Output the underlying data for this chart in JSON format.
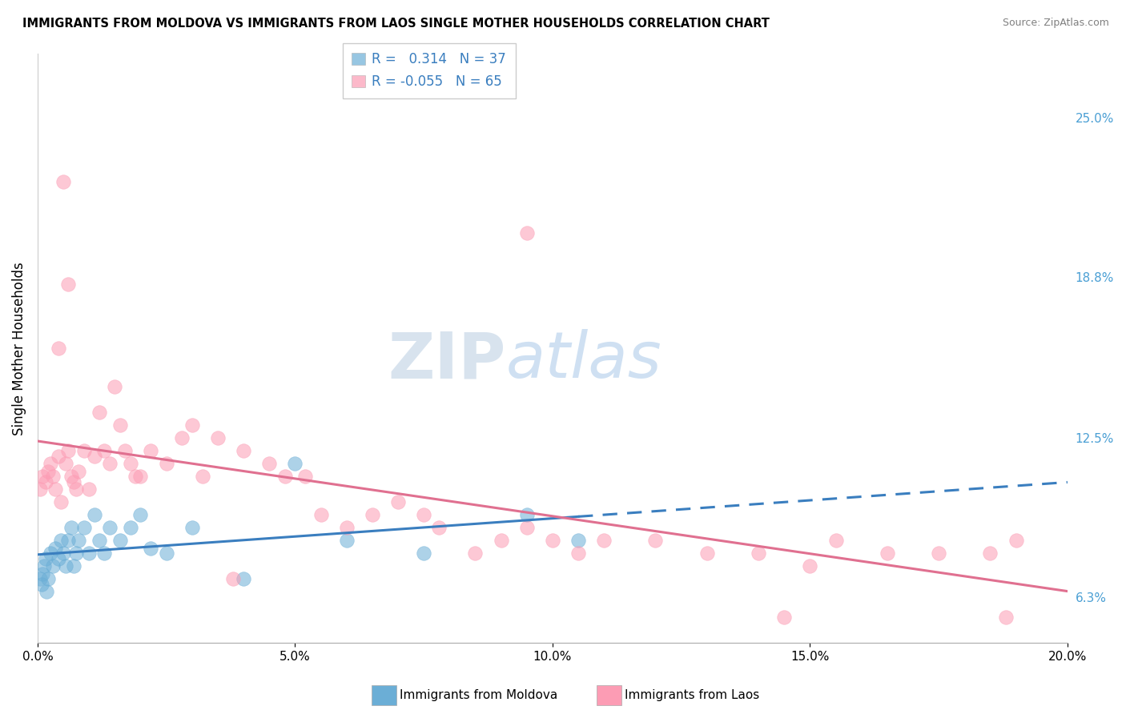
{
  "title": "IMMIGRANTS FROM MOLDOVA VS IMMIGRANTS FROM LAOS SINGLE MOTHER HOUSEHOLDS CORRELATION CHART",
  "source": "Source: ZipAtlas.com",
  "ylabel": "Single Mother Households",
  "xlabel_vals": [
    0.0,
    5.0,
    10.0,
    15.0,
    20.0
  ],
  "ylabel_vals": [
    6.3,
    12.5,
    18.8,
    25.0
  ],
  "xlim": [
    0.0,
    20.0
  ],
  "ylim": [
    4.5,
    27.5
  ],
  "legend1_label": "Immigrants from Moldova",
  "legend2_label": "Immigrants from Laos",
  "r1": "0.314",
  "n1": "37",
  "r2": "-0.055",
  "n2": "65",
  "moldova_color": "#6baed6",
  "laos_color": "#fc9cb4",
  "moldova_line_color": "#3a7ebf",
  "laos_line_color": "#e07090",
  "watermark_zip": "ZIP",
  "watermark_atlas": "atlas",
  "grid_color": "#d0d0d0",
  "moldova_x": [
    0.05,
    0.08,
    0.1,
    0.12,
    0.15,
    0.18,
    0.2,
    0.25,
    0.3,
    0.35,
    0.4,
    0.45,
    0.5,
    0.55,
    0.6,
    0.65,
    0.7,
    0.75,
    0.8,
    0.9,
    1.0,
    1.1,
    1.2,
    1.4,
    1.6,
    1.8,
    2.0,
    2.5,
    3.0,
    4.0,
    5.0,
    6.0,
    7.5,
    9.5,
    10.5,
    1.3,
    2.2
  ],
  "moldova_y": [
    7.0,
    6.8,
    7.2,
    7.5,
    7.8,
    6.5,
    7.0,
    8.0,
    7.5,
    8.2,
    7.8,
    8.5,
    8.0,
    7.5,
    8.5,
    9.0,
    7.5,
    8.0,
    8.5,
    9.0,
    8.0,
    9.5,
    8.5,
    9.0,
    8.5,
    9.0,
    9.5,
    8.0,
    9.0,
    7.0,
    11.5,
    8.5,
    8.0,
    9.5,
    8.5,
    8.0,
    8.2
  ],
  "laos_x": [
    0.05,
    0.1,
    0.15,
    0.2,
    0.25,
    0.3,
    0.35,
    0.4,
    0.45,
    0.5,
    0.55,
    0.6,
    0.65,
    0.7,
    0.75,
    0.8,
    0.9,
    1.0,
    1.1,
    1.2,
    1.3,
    1.4,
    1.5,
    1.6,
    1.7,
    1.8,
    1.9,
    2.0,
    2.2,
    2.5,
    2.8,
    3.0,
    3.2,
    3.5,
    4.0,
    4.5,
    4.8,
    5.2,
    5.5,
    6.0,
    6.5,
    7.0,
    7.5,
    7.8,
    8.5,
    9.0,
    9.5,
    10.0,
    10.5,
    11.0,
    12.0,
    13.0,
    14.0,
    15.0,
    15.5,
    16.5,
    17.5,
    18.5,
    19.0,
    9.5,
    14.5,
    18.8,
    0.4,
    0.6,
    3.8
  ],
  "laos_y": [
    10.5,
    11.0,
    10.8,
    11.2,
    11.5,
    11.0,
    10.5,
    11.8,
    10.0,
    22.5,
    11.5,
    12.0,
    11.0,
    10.8,
    10.5,
    11.2,
    12.0,
    10.5,
    11.8,
    13.5,
    12.0,
    11.5,
    14.5,
    13.0,
    12.0,
    11.5,
    11.0,
    11.0,
    12.0,
    11.5,
    12.5,
    13.0,
    11.0,
    12.5,
    12.0,
    11.5,
    11.0,
    11.0,
    9.5,
    9.0,
    9.5,
    10.0,
    9.5,
    9.0,
    8.0,
    8.5,
    9.0,
    8.5,
    8.0,
    8.5,
    8.5,
    8.0,
    8.0,
    7.5,
    8.5,
    8.0,
    8.0,
    8.0,
    8.5,
    20.5,
    5.5,
    5.5,
    16.0,
    18.5,
    7.0
  ]
}
